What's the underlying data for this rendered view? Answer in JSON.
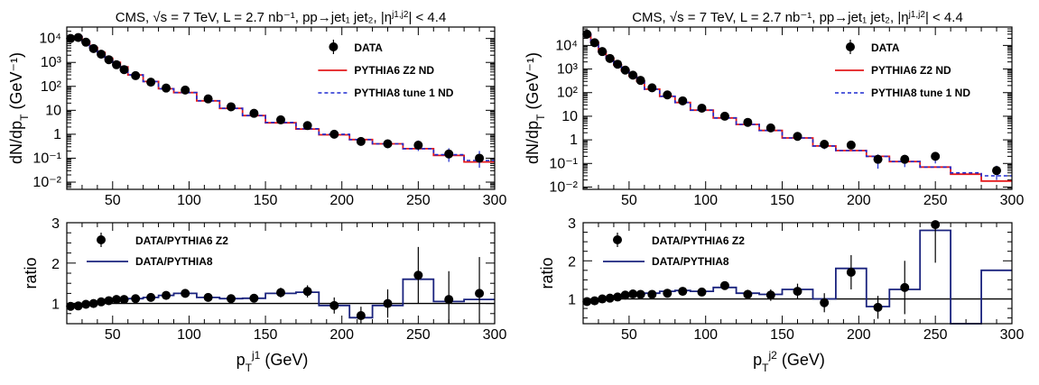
{
  "chart_data": [
    {
      "type": "scatter",
      "title": "CMS,  √s = 7 TeV, L = 2.7 nb⁻¹, pp→jet₁ jet₂,  |η^{j1,j2}| < 4.4",
      "ylabel": "dN/dp_T (GeV⁻¹)",
      "ylog": true,
      "xlim": [
        20,
        300
      ],
      "ylim": [
        0.005,
        30000
      ],
      "xticks": [
        50,
        100,
        150,
        200,
        250,
        300
      ],
      "ytick_labels": [
        "10⁻²",
        "10⁻¹",
        "1",
        "10",
        "10²",
        "10³",
        "10⁴"
      ],
      "legend_position": "top-right",
      "colors": {
        "pythia6": "#e31a1c",
        "pythia8": "#1f2bd0",
        "data": "#000000"
      },
      "legend": [
        "DATA",
        "PYTHIA6 Z2 ND",
        "PYTHIA8 tune 1 ND"
      ],
      "bin_edges": [
        20,
        25,
        30,
        35,
        40,
        45,
        50,
        55,
        60,
        70,
        80,
        90,
        105,
        120,
        135,
        150,
        170,
        185,
        205,
        220,
        240,
        260,
        280,
        300
      ],
      "series": [
        {
          "name": "DATA",
          "x": [
            22.5,
            27.5,
            32.5,
            37.5,
            42.5,
            47.5,
            52.5,
            57.5,
            65,
            75,
            85,
            97.5,
            112.5,
            127.5,
            142.5,
            160,
            177.5,
            195,
            212.5,
            230,
            250,
            270,
            290
          ],
          "values": [
            10000,
            11000,
            7000,
            3800,
            2200,
            1300,
            800,
            500,
            280,
            150,
            85,
            70,
            30,
            14,
            7.5,
            4,
            2.3,
            1.0,
            0.5,
            0.4,
            0.35,
            0.15,
            0.1
          ],
          "err_lo": [
            9000,
            10000,
            6500,
            3500,
            2000,
            1200,
            740,
            460,
            260,
            140,
            78,
            64,
            27,
            12.5,
            6.6,
            3.4,
            1.9,
            0.75,
            0.35,
            0.26,
            0.2,
            0.07,
            0.04
          ],
          "err_hi": [
            11000,
            12000,
            7500,
            4100,
            2400,
            1400,
            860,
            540,
            300,
            160,
            92,
            76,
            33,
            15.5,
            8.4,
            4.7,
            2.8,
            1.3,
            0.68,
            0.58,
            0.55,
            0.26,
            0.2
          ]
        },
        {
          "name": "PYTHIA6 Z2 ND",
          "values": [
            11500,
            12000,
            7300,
            4200,
            2600,
            1500,
            1000,
            650,
            300,
            160,
            80,
            55,
            25,
            12,
            6.0,
            3.0,
            1.65,
            0.95,
            0.6,
            0.4,
            0.25,
            0.13,
            0.07
          ]
        },
        {
          "name": "PYTHIA8 tune 1 ND",
          "values": [
            11600,
            12100,
            7300,
            4100,
            2600,
            1500,
            1000,
            640,
            300,
            160,
            80,
            55,
            25,
            12,
            6.0,
            3.1,
            1.7,
            1.0,
            0.6,
            0.4,
            0.25,
            0.14,
            0.08
          ]
        }
      ]
    },
    {
      "type": "scatter",
      "xlabel": "p_T^{j1} (GeV)",
      "ylabel": "ratio",
      "xlim": [
        20,
        300
      ],
      "ylim": [
        0.5,
        3
      ],
      "xticks": [
        50,
        100,
        150,
        200,
        250,
        300
      ],
      "yticks": [
        1,
        2,
        3
      ],
      "reference_line": 1,
      "legend_position": "top-left",
      "legend": [
        "DATA/PYTHIA6 Z2",
        "DATA/PYTHIA8"
      ],
      "bin_edges": [
        20,
        25,
        30,
        35,
        40,
        45,
        50,
        55,
        60,
        70,
        80,
        90,
        105,
        120,
        135,
        150,
        170,
        185,
        205,
        220,
        240,
        260,
        280,
        300
      ],
      "series": [
        {
          "name": "DATA/PYTHIA6 Z2",
          "x": [
            22.5,
            27.5,
            32.5,
            37.5,
            42.5,
            47.5,
            52.5,
            57.5,
            65,
            75,
            85,
            97.5,
            112.5,
            127.5,
            142.5,
            160,
            177.5,
            195,
            212.5,
            230,
            250,
            270,
            290
          ],
          "values": [
            0.93,
            0.94,
            0.98,
            1.0,
            1.04,
            1.07,
            1.1,
            1.1,
            1.12,
            1.15,
            1.2,
            1.25,
            1.15,
            1.12,
            1.13,
            1.27,
            1.3,
            0.95,
            0.7,
            1.0,
            1.7,
            1.1,
            1.25
          ],
          "err": [
            0.03,
            0.03,
            0.03,
            0.03,
            0.03,
            0.03,
            0.03,
            0.03,
            0.04,
            0.04,
            0.05,
            0.05,
            0.06,
            0.07,
            0.08,
            0.12,
            0.15,
            0.2,
            0.22,
            0.35,
            0.7,
            0.7,
            0.9
          ]
        },
        {
          "name": "DATA/PYTHIA8",
          "values": [
            0.93,
            0.95,
            0.98,
            1.0,
            1.04,
            1.07,
            1.1,
            1.1,
            1.12,
            1.15,
            1.2,
            1.25,
            1.15,
            1.12,
            1.13,
            1.25,
            1.28,
            0.95,
            0.65,
            0.95,
            1.6,
            1.05,
            1.1
          ]
        }
      ]
    },
    {
      "type": "scatter",
      "title": "CMS,  √s = 7 TeV, L = 2.7 nb⁻¹, pp→jet₁ jet₂,  |η^{j1,j2}| < 4.4",
      "ylabel": "dN/dp_T (GeV⁻¹)",
      "ylog": true,
      "xlim": [
        20,
        300
      ],
      "ylim": [
        0.008,
        60000
      ],
      "xticks": [
        50,
        100,
        150,
        200,
        250,
        300
      ],
      "ytick_labels": [
        "10⁻²",
        "10⁻¹",
        "1",
        "10",
        "10²",
        "10³",
        "10⁴"
      ],
      "legend_position": "top-right",
      "legend": [
        "DATA",
        "PYTHIA6 Z2 ND",
        "PYTHIA8 tune 1 ND"
      ],
      "bin_edges": [
        20,
        25,
        30,
        35,
        40,
        45,
        50,
        55,
        60,
        70,
        80,
        90,
        105,
        120,
        135,
        150,
        170,
        185,
        205,
        220,
        240,
        260,
        280,
        300
      ],
      "series": [
        {
          "name": "DATA",
          "x": [
            22.5,
            27.5,
            32.5,
            37.5,
            42.5,
            47.5,
            52.5,
            57.5,
            65,
            75,
            85,
            97.5,
            112.5,
            127.5,
            142.5,
            160,
            177.5,
            195,
            212.5,
            230,
            250,
            290
          ],
          "values": [
            30000,
            13000,
            5500,
            2800,
            1600,
            900,
            550,
            330,
            160,
            80,
            45,
            22,
            10,
            5.5,
            3.2,
            1.4,
            0.65,
            0.6,
            0.15,
            0.15,
            0.2,
            0.05
          ],
          "err_lo": [
            27000,
            12000,
            5000,
            2550,
            1450,
            810,
            490,
            300,
            145,
            71,
            40,
            19,
            8.4,
            4.5,
            2.5,
            1.0,
            0.4,
            0.4,
            0.06,
            0.07,
            0.1,
            0.02
          ],
          "err_hi": [
            33000,
            14000,
            6000,
            3050,
            1750,
            990,
            610,
            360,
            175,
            89,
            50,
            25,
            11.6,
            6.5,
            3.9,
            1.8,
            0.9,
            0.8,
            0.24,
            0.23,
            0.3,
            0.08
          ]
        },
        {
          "name": "PYTHIA6 Z2 ND",
          "values": [
            30000,
            13500,
            5500,
            2800,
            1500,
            850,
            500,
            300,
            140,
            70,
            38,
            18,
            8.5,
            4.5,
            2.5,
            1.2,
            0.55,
            0.35,
            0.2,
            0.12,
            0.07,
            0.035,
            0.018
          ]
        },
        {
          "name": "PYTHIA8 tune 1 ND",
          "values": [
            30000,
            13500,
            5500,
            2800,
            1500,
            850,
            500,
            300,
            140,
            70,
            38,
            18,
            8.5,
            4.5,
            2.5,
            1.2,
            0.55,
            0.35,
            0.2,
            0.12,
            0.07,
            0.04,
            0.03
          ]
        }
      ]
    },
    {
      "type": "scatter",
      "xlabel": "p_T^{j2} (GeV)",
      "ylabel": "ratio",
      "xlim": [
        20,
        300
      ],
      "ylim": [
        0.35,
        3
      ],
      "xticks": [
        50,
        100,
        150,
        200,
        250,
        300
      ],
      "yticks": [
        1,
        2,
        3
      ],
      "reference_line": 1,
      "legend_position": "top-left",
      "legend": [
        "DATA/PYTHIA6 Z2",
        "DATA/PYTHIA8"
      ],
      "bin_edges": [
        20,
        25,
        30,
        35,
        40,
        45,
        50,
        55,
        60,
        70,
        80,
        90,
        105,
        120,
        135,
        150,
        170,
        185,
        205,
        220,
        240,
        260,
        280,
        300
      ],
      "series": [
        {
          "name": "DATA/PYTHIA6 Z2",
          "x": [
            22.5,
            27.5,
            32.5,
            37.5,
            42.5,
            47.5,
            52.5,
            57.5,
            65,
            75,
            85,
            97.5,
            112.5,
            127.5,
            142.5,
            160,
            177.5,
            195,
            212.5,
            230,
            250
          ],
          "values": [
            0.93,
            0.95,
            1.0,
            1.02,
            1.05,
            1.1,
            1.13,
            1.12,
            1.12,
            1.15,
            1.2,
            1.18,
            1.35,
            1.12,
            1.1,
            1.2,
            0.9,
            1.7,
            0.78,
            1.3,
            2.95
          ],
          "err": [
            0.03,
            0.03,
            0.03,
            0.03,
            0.03,
            0.04,
            0.04,
            0.04,
            0.05,
            0.06,
            0.07,
            0.08,
            0.1,
            0.12,
            0.15,
            0.2,
            0.25,
            0.45,
            0.3,
            0.7,
            1.0
          ]
        },
        {
          "name": "DATA/PYTHIA8",
          "values": [
            0.93,
            0.95,
            1.0,
            1.02,
            1.05,
            1.1,
            1.13,
            1.12,
            1.15,
            1.2,
            1.22,
            1.2,
            1.3,
            1.15,
            1.12,
            1.25,
            1.0,
            1.8,
            0.8,
            1.25,
            2.8,
            0.35,
            1.75
          ]
        }
      ]
    }
  ]
}
